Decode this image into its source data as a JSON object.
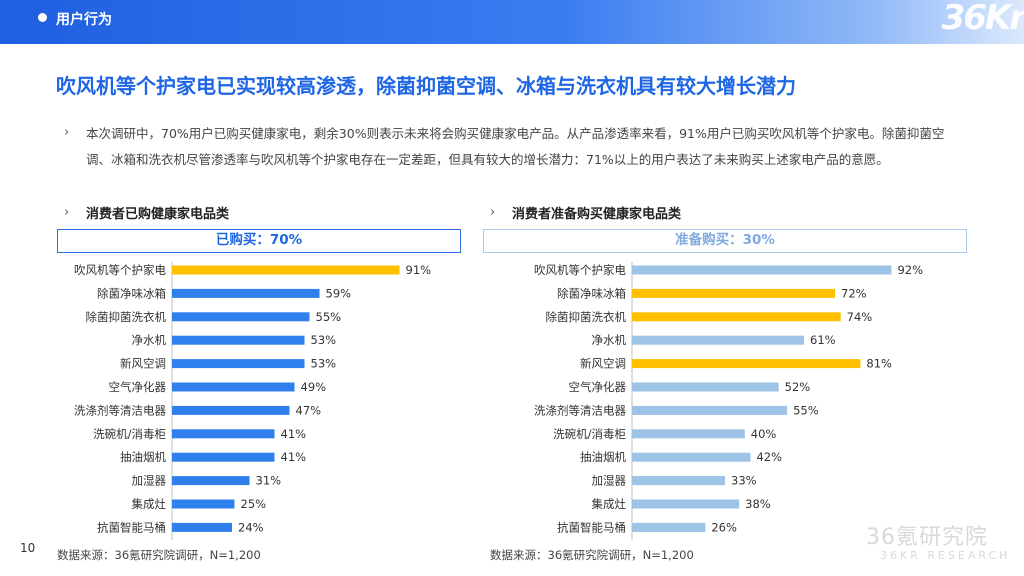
{
  "header": {
    "section": "用户行为",
    "logo": "36Kr"
  },
  "title": "吹风机等个护家电已实现较高渗透，除菌抑菌空调、冰箱与洗衣机具有较大增长潜力",
  "paragraph": "本次调研中，70%用户已购买健康家电，剩余30%则表示未来将会购买健康家电产品。从产品渗透率来看，91%用户已购买吹风机等个护家电。除菌抑菌空调、冰箱和洗衣机尽管渗透率与吹风机等个护家电存在一定差距，但具有较大的增长潜力：71%以上的用户表达了未来购买上述家电产品的意愿。",
  "bullet_symbol": "›",
  "left": {
    "heading": "消费者已购健康家电品类",
    "box_label": "已购买：70%",
    "source": "数据来源：36氪研究院调研，N=1,200"
  },
  "right": {
    "heading": "消费者准备购买健康家电品类",
    "box_label": "准备购买：30%",
    "source": "数据来源：36氪研究院调研，N=1,200"
  },
  "page_number": "10",
  "watermark": {
    "cn": "36氪研究院",
    "en": "36KR RESEARCH"
  },
  "colors": {
    "highlight": "#ffc000",
    "left_bar": "#2f80ed",
    "right_bar": "#9dc3e6",
    "title": "#1f66e5"
  },
  "chart_data": [
    {
      "type": "bar",
      "orientation": "horizontal",
      "categories": [
        "吹风机等个护家电",
        "除菌净味冰箱",
        "除菌抑菌洗衣机",
        "净水机",
        "新风空调",
        "空气净化器",
        "洗涤剂等清洁电器",
        "洗碗机/消毒柜",
        "抽油烟机",
        "加湿器",
        "集成灶",
        "抗菌智能马桶"
      ],
      "values": [
        91,
        59,
        55,
        53,
        53,
        49,
        47,
        41,
        41,
        31,
        25,
        24
      ],
      "value_labels": [
        "91%",
        "59%",
        "55%",
        "53%",
        "53%",
        "49%",
        "47%",
        "41%",
        "41%",
        "31%",
        "25%",
        "24%"
      ],
      "highlighted": [
        0
      ],
      "xlim": [
        0,
        100
      ]
    },
    {
      "type": "bar",
      "orientation": "horizontal",
      "categories": [
        "吹风机等个护家电",
        "除菌净味冰箱",
        "除菌抑菌洗衣机",
        "净水机",
        "新风空调",
        "空气净化器",
        "洗涤剂等清洁电器",
        "洗碗机/消毒柜",
        "抽油烟机",
        "加湿器",
        "集成灶",
        "抗菌智能马桶"
      ],
      "values": [
        92,
        72,
        74,
        61,
        81,
        52,
        55,
        40,
        42,
        33,
        38,
        26
      ],
      "value_labels": [
        "92%",
        "72%",
        "74%",
        "61%",
        "81%",
        "52%",
        "55%",
        "40%",
        "42%",
        "33%",
        "38%",
        "26%"
      ],
      "highlighted": [
        1,
        2,
        4
      ],
      "xlim": [
        0,
        100
      ]
    }
  ]
}
